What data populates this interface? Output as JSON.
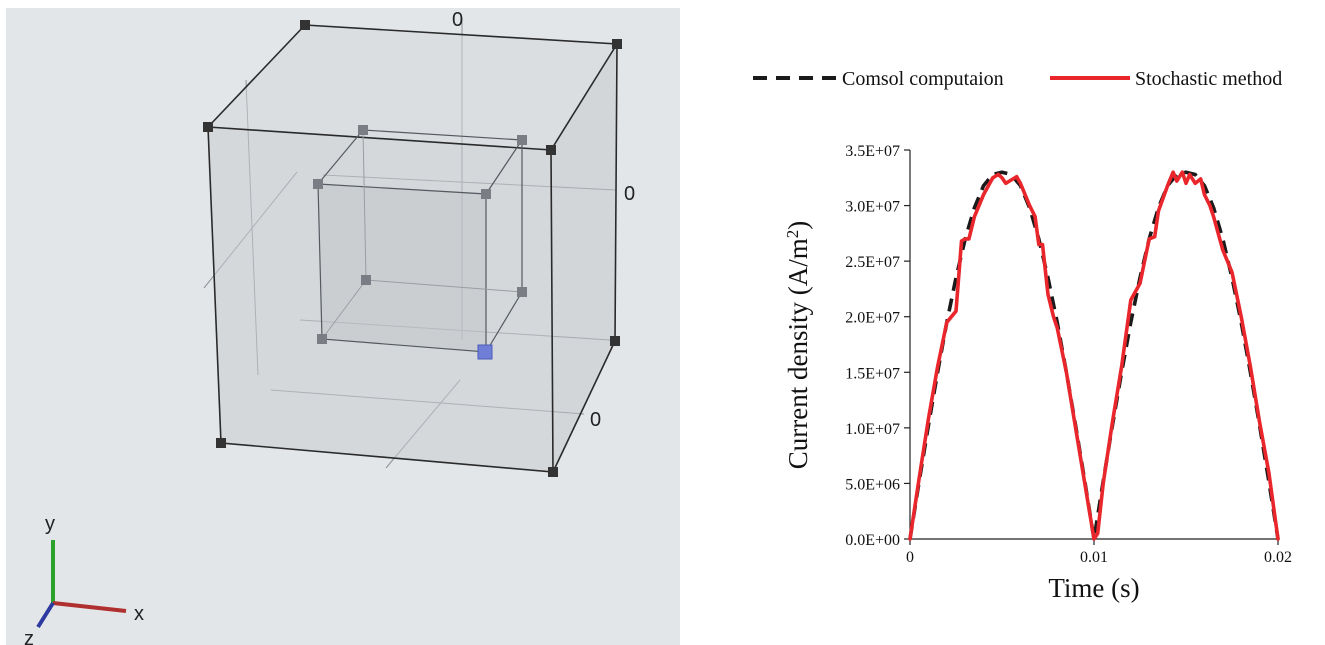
{
  "viewport": {
    "background": "#e3e6e9",
    "axis_labels": {
      "y": "y",
      "x": "x",
      "z": "z"
    },
    "zero_labels": [
      "0",
      "0",
      "0"
    ],
    "colors": {
      "x_axis": "#b03030",
      "y_axis": "#2aa12a",
      "z_axis": "#2d3a9f",
      "selected_vertex": "#6f7fd8"
    }
  },
  "chart_data": {
    "type": "line",
    "title": "",
    "xlabel": "Time (s)",
    "ylabel": "Current density (A/m",
    "ylabel_superscript": "2",
    "ylabel_close": ")",
    "xlim": [
      0,
      0.02
    ],
    "ylim": [
      0,
      35000000
    ],
    "x_ticks": [
      0,
      0.01,
      0.02
    ],
    "x_tick_labels": [
      "0",
      "0.01",
      "0.02"
    ],
    "y_ticks": [
      0,
      5000000,
      10000000,
      15000000,
      20000000,
      25000000,
      30000000,
      35000000
    ],
    "y_tick_labels": [
      "0.0E+00",
      "5.0E+06",
      "1.0E+07",
      "1.5E+07",
      "2.0E+07",
      "2.5E+07",
      "3.0E+07",
      "3.5E+07"
    ],
    "grid": false,
    "legend_position": "top",
    "series": [
      {
        "name": "Comsol computaion",
        "style": "dashed",
        "color": "#1a1a1a",
        "x": [
          0,
          0.0005,
          0.001,
          0.0015,
          0.002,
          0.0025,
          0.003,
          0.0035,
          0.004,
          0.0045,
          0.005,
          0.0055,
          0.006,
          0.0065,
          0.007,
          0.0075,
          0.008,
          0.0085,
          0.009,
          0.0095,
          0.01,
          0.0105,
          0.011,
          0.0115,
          0.012,
          0.0125,
          0.013,
          0.0135,
          0.014,
          0.0145,
          0.015,
          0.0155,
          0.016,
          0.0165,
          0.017,
          0.0175,
          0.018,
          0.0185,
          0.019,
          0.0195,
          0.02
        ],
        "y": [
          0,
          5200000,
          10200000,
          15000000,
          19500000,
          23500000,
          27000000,
          29800000,
          31800000,
          32800000,
          33000000,
          32800000,
          31800000,
          29800000,
          27000000,
          23500000,
          19500000,
          15000000,
          10200000,
          5200000,
          0,
          5200000,
          10200000,
          15000000,
          19500000,
          23500000,
          27000000,
          29800000,
          31800000,
          32800000,
          33000000,
          32800000,
          31800000,
          29800000,
          27000000,
          23500000,
          19500000,
          15000000,
          10200000,
          5200000,
          0
        ]
      },
      {
        "name": "Stochastic method",
        "style": "solid",
        "color": "#e8262b",
        "x": [
          0,
          0.0005,
          0.001,
          0.0015,
          0.002,
          0.0025,
          0.0028,
          0.003,
          0.0032,
          0.0035,
          0.004,
          0.0045,
          0.0048,
          0.005,
          0.0052,
          0.0055,
          0.0058,
          0.006,
          0.0065,
          0.0068,
          0.007,
          0.0072,
          0.0075,
          0.0078,
          0.008,
          0.0085,
          0.009,
          0.0095,
          0.01,
          0.0102,
          0.0105,
          0.011,
          0.0115,
          0.012,
          0.0125,
          0.013,
          0.0133,
          0.0135,
          0.014,
          0.0143,
          0.0145,
          0.0148,
          0.015,
          0.0152,
          0.0155,
          0.0158,
          0.016,
          0.0163,
          0.0165,
          0.017,
          0.0175,
          0.018,
          0.0185,
          0.019,
          0.0195,
          0.02
        ],
        "y": [
          0,
          5500000,
          10800000,
          15500000,
          19500000,
          20500000,
          26800000,
          27000000,
          27000000,
          29000000,
          31000000,
          32500000,
          32800000,
          32500000,
          32000000,
          32300000,
          32600000,
          32000000,
          30000000,
          29000000,
          26500000,
          26500000,
          22000000,
          20000000,
          19000000,
          15000000,
          10000000,
          5000000,
          0,
          500000,
          5000000,
          10500000,
          15500000,
          21500000,
          23000000,
          27000000,
          27200000,
          29500000,
          31800000,
          33000000,
          32200000,
          33000000,
          32000000,
          32800000,
          32000000,
          32400000,
          31000000,
          30000000,
          29000000,
          26000000,
          24000000,
          20000000,
          15500000,
          10500000,
          6000000,
          0
        ]
      }
    ]
  }
}
